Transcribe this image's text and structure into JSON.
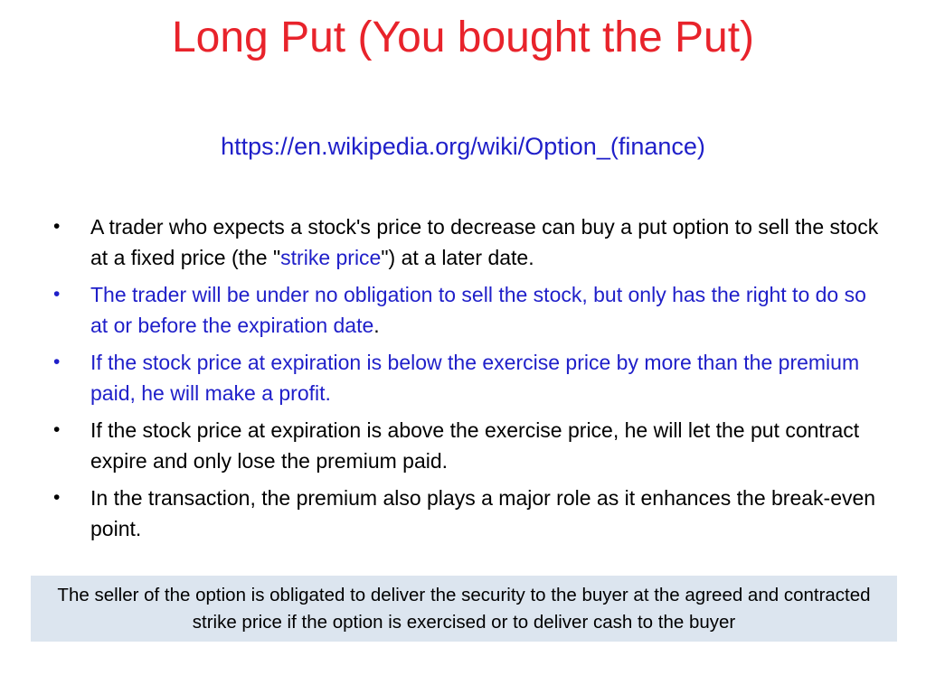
{
  "slide": {
    "title": "Long Put (You bought the Put)",
    "source_link": "https://en.wikipedia.org/wiki/Option_(finance)",
    "bullets": [
      {
        "marker": "•",
        "part_a": "A trader who expects a stock's price to decrease can buy a put option to sell the stock at a fixed price (the \"",
        "link": "strike price",
        "part_b": "\") at a later date."
      },
      {
        "marker": "•",
        "blue": "The trader will be under no obligation to sell the stock, but only has the right to do so at or before the expiration date",
        "tail": "."
      },
      {
        "marker": "•",
        "blue": "If the stock price at expiration is below the exercise price by more than the premium paid, he will make a profit."
      },
      {
        "marker": "•",
        "text": "If the stock price at expiration is above the exercise price, he will let the put contract expire and only lose the premium paid."
      },
      {
        "marker": "•",
        "text": "In the transaction, the premium also plays a major role as it enhances the break-even point."
      }
    ],
    "footer_note": "The seller of the option is obligated to deliver the security to the buyer at the agreed and contracted strike price if the option is exercised or to deliver cash to the buyer"
  },
  "colors": {
    "title": "#e8232b",
    "link_blue": "#1f1fc9",
    "footer_bg": "#dce5ef"
  }
}
